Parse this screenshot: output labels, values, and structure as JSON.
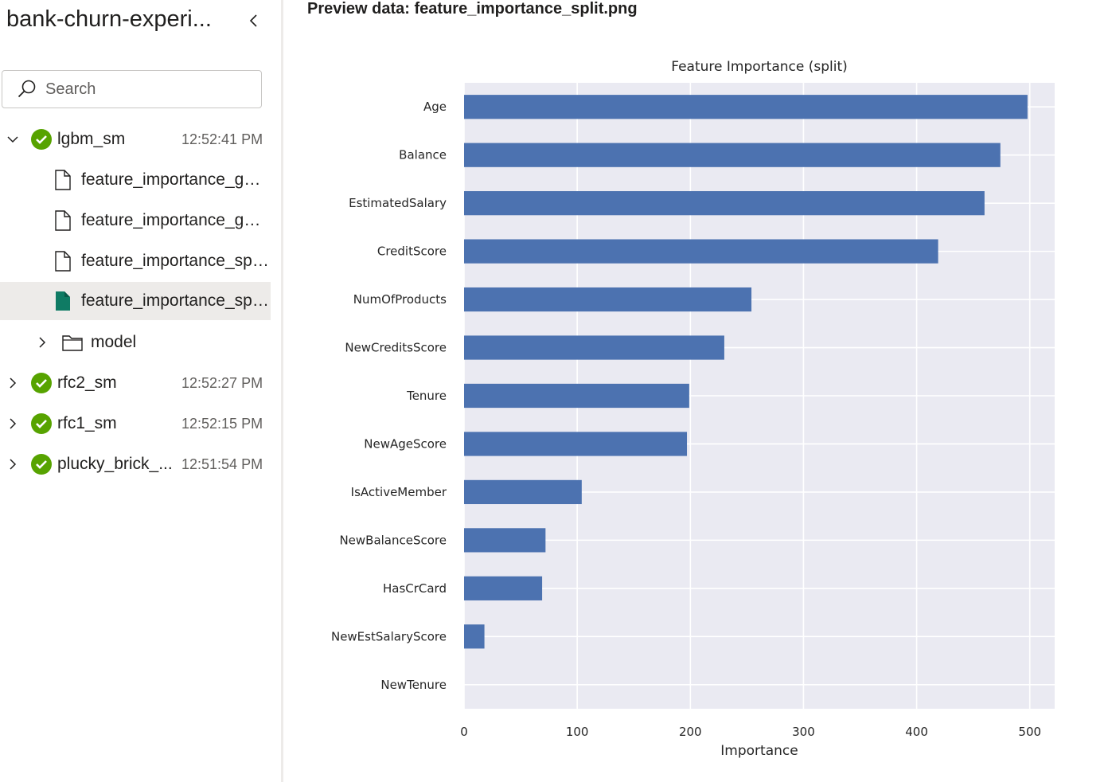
{
  "sidebar": {
    "experiment_title": "bank-churn-experi...",
    "search": {
      "placeholder": "Search"
    },
    "runs": [
      {
        "name": "lgbm_sm",
        "time": "12:52:41 PM",
        "status": "completed",
        "expanded": true,
        "files": [
          {
            "name": "feature_importance_gai...",
            "selected": false
          },
          {
            "name": "feature_importance_gai...",
            "selected": false
          },
          {
            "name": "feature_importance_spl...",
            "selected": false
          },
          {
            "name": "feature_importance_spl...",
            "selected": true
          }
        ],
        "folders": [
          {
            "name": "model"
          }
        ]
      },
      {
        "name": "rfc2_sm",
        "time": "12:52:27 PM",
        "status": "completed",
        "expanded": false
      },
      {
        "name": "rfc1_sm",
        "time": "12:52:15 PM",
        "status": "completed",
        "expanded": false
      },
      {
        "name": "plucky_brick_...",
        "time": "12:51:54 PM",
        "status": "completed",
        "expanded": false
      }
    ]
  },
  "preview": {
    "title": "Preview data: feature_importance_split.png"
  },
  "colors": {
    "bar": "#4c72b0",
    "plot_bg": "#eaeaf2",
    "grid": "#ffffff",
    "status_ok": "#57a300",
    "selected_file_icon": "#0f7b64"
  },
  "chart_data": {
    "type": "bar",
    "orientation": "horizontal",
    "title": "Feature Importance (split)",
    "xlabel": "Importance",
    "ylabel": "",
    "categories": [
      "Age",
      "Balance",
      "EstimatedSalary",
      "CreditScore",
      "NumOfProducts",
      "NewCreditsScore",
      "Tenure",
      "NewAgeScore",
      "IsActiveMember",
      "NewBalanceScore",
      "HasCrCard",
      "NewEstSalaryScore",
      "NewTenure"
    ],
    "values": [
      498,
      474,
      460,
      419,
      254,
      230,
      199,
      197,
      104,
      72,
      69,
      18,
      0
    ],
    "xlim": [
      0,
      522
    ],
    "xticks": [
      0,
      100,
      200,
      300,
      400,
      500
    ],
    "grid": true
  }
}
